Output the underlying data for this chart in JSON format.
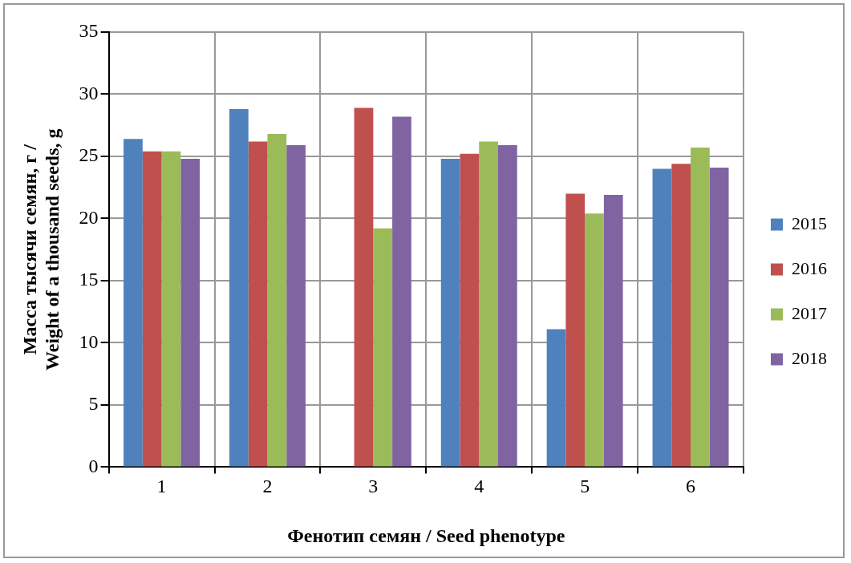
{
  "chart_data": {
    "type": "bar",
    "xlabel": "Фенотип семян / Seed phenotype",
    "ylabel": "Масса тысячи семян, г / Weight of a thousand seeds, g",
    "categories": [
      "1",
      "2",
      "3",
      "4",
      "5",
      "6"
    ],
    "series": [
      {
        "name": "2015",
        "color": "#4f81bd",
        "values": [
          26.4,
          28.8,
          null,
          24.8,
          11.1,
          24.0
        ]
      },
      {
        "name": "2016",
        "color": "#c0504d",
        "values": [
          25.4,
          26.2,
          28.9,
          25.2,
          22.0,
          24.4
        ]
      },
      {
        "name": "2017",
        "color": "#9bbb59",
        "values": [
          25.4,
          26.8,
          19.2,
          26.2,
          20.4,
          25.7
        ]
      },
      {
        "name": "2018",
        "color": "#8064a2",
        "values": [
          24.8,
          25.9,
          28.2,
          25.9,
          21.9,
          24.1
        ]
      }
    ],
    "ylim": [
      0,
      35
    ],
    "yticks": [
      0,
      5,
      10,
      15,
      20,
      25,
      30,
      35
    ],
    "grid": true,
    "legend": "right"
  }
}
